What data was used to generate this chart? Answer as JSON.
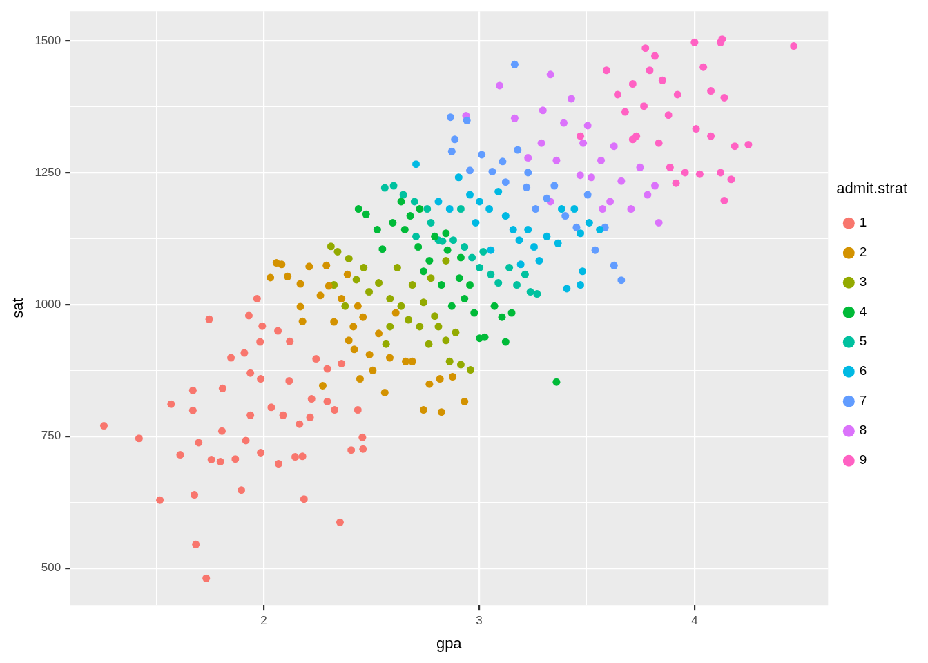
{
  "chart_data": {
    "type": "scatter",
    "xlabel": "gpa",
    "ylabel": "sat",
    "legend_title": "admit.strat",
    "legend": "right",
    "grid": true,
    "marker": "circle",
    "xlim": [
      1.1,
      4.62
    ],
    "ylim": [
      430,
      1556
    ],
    "xticks": [
      {
        "value": 1.5,
        "label": null
      },
      2,
      {
        "value": 2.5,
        "label": null
      },
      3,
      {
        "value": 3.5,
        "label": null
      },
      4,
      {
        "value": 4.5,
        "label": null
      }
    ],
    "yticks": [
      500,
      {
        "value": 625,
        "label": null
      },
      750,
      {
        "value": 875,
        "label": null
      },
      1000,
      {
        "value": 1125,
        "label": null
      },
      1250,
      {
        "value": 1375,
        "label": null
      },
      1500
    ],
    "series": [
      {
        "name": "1",
        "color": "#f8766d",
        "x": [
          1.258,
          1.421,
          1.518,
          1.57,
          1.612,
          1.671,
          1.671,
          1.678,
          1.685,
          1.698,
          1.733,
          1.747,
          1.757,
          1.799,
          1.806,
          1.809,
          1.848,
          1.868,
          1.896,
          1.91,
          1.917,
          1.931,
          1.938,
          1.938,
          1.969,
          1.983,
          1.986,
          1.993,
          1.986,
          2.035,
          2.066,
          2.069,
          2.09,
          2.118,
          2.121,
          2.146,
          2.166,
          2.18,
          2.187,
          2.222,
          2.215,
          2.243,
          2.295,
          2.329,
          2.354,
          2.361,
          2.406,
          2.437,
          2.458,
          2.461,
          2.295
        ],
        "values": [
          770,
          746,
          629,
          811,
          715,
          837,
          799,
          639,
          545,
          738,
          481,
          972,
          706,
          702,
          760,
          841,
          899,
          707,
          648,
          908,
          742,
          979,
          870,
          790,
          1011,
          929,
          859,
          959,
          719,
          805,
          950,
          698,
          790,
          855,
          930,
          711,
          773,
          712,
          631,
          821,
          786,
          897,
          878,
          800,
          587,
          888,
          724,
          800,
          748,
          726,
          816
        ]
      },
      {
        "name": "2",
        "color": "#d39200",
        "x": [
          2.031,
          2.059,
          2.083,
          2.111,
          2.17,
          2.211,
          2.17,
          2.18,
          2.263,
          2.291,
          2.302,
          2.326,
          2.361,
          2.389,
          2.395,
          2.416,
          2.437,
          2.461,
          2.491,
          2.506,
          2.534,
          2.562,
          2.585,
          2.613,
          2.659,
          2.69,
          2.742,
          2.769,
          2.818,
          2.825,
          2.877,
          2.932,
          2.42,
          2.274,
          2.447
        ],
        "values": [
          1051,
          1079,
          1076,
          1053,
          1039,
          1072,
          996,
          968,
          1017,
          1074,
          1035,
          967,
          1011,
          1057,
          932,
          958,
          997,
          976,
          905,
          875,
          945,
          833,
          899,
          984,
          892,
          892,
          800,
          849,
          859,
          796,
          863,
          816,
          915,
          846,
          859
        ]
      },
      {
        "name": "3",
        "color": "#93aa00",
        "x": [
          2.312,
          2.343,
          2.395,
          2.326,
          2.378,
          2.43,
          2.464,
          2.489,
          2.534,
          2.586,
          2.586,
          2.638,
          2.672,
          2.69,
          2.724,
          2.742,
          2.766,
          2.794,
          2.811,
          2.846,
          2.863,
          2.891,
          2.915,
          2.96,
          2.846,
          2.776,
          2.62,
          2.568
        ],
        "values": [
          1110,
          1100,
          1087,
          1037,
          997,
          1047,
          1070,
          1024,
          1041,
          1011,
          958,
          997,
          971,
          1037,
          958,
          1004,
          925,
          978,
          958,
          932,
          892,
          947,
          886,
          876,
          1083,
          1050,
          1070,
          925
        ]
      },
      {
        "name": "4",
        "color": "#00ba38",
        "x": [
          2.44,
          2.475,
          2.527,
          2.551,
          2.599,
          2.638,
          2.68,
          2.717,
          2.724,
          2.742,
          2.769,
          2.794,
          2.825,
          2.853,
          2.873,
          2.908,
          2.932,
          2.957,
          2.977,
          3.002,
          3.026,
          3.071,
          3.106,
          3.123,
          3.151,
          3.359,
          2.846,
          2.655,
          2.915
        ],
        "values": [
          1181,
          1171,
          1142,
          1105,
          1155,
          1195,
          1168,
          1109,
          1181,
          1063,
          1083,
          1129,
          1037,
          1103,
          997,
          1050,
          1011,
          1037,
          984,
          936,
          938,
          997,
          976,
          929,
          984,
          853,
          1135,
          1142,
          1089
        ]
      },
      {
        "name": "5",
        "color": "#00c19f",
        "x": [
          2.562,
          2.603,
          2.648,
          2.7,
          2.759,
          2.776,
          2.811,
          2.83,
          2.88,
          2.932,
          2.967,
          3.002,
          3.019,
          3.054,
          3.089,
          3.14,
          3.175,
          3.213,
          3.238,
          3.269,
          2.707,
          2.915
        ],
        "values": [
          1221,
          1225,
          1208,
          1195,
          1181,
          1155,
          1122,
          1120,
          1122,
          1109,
          1089,
          1070,
          1100,
          1057,
          1041,
          1070,
          1037,
          1057,
          1024,
          1020,
          1129,
          1181
        ]
      },
      {
        "name": "6",
        "color": "#00b9e3",
        "x": [
          2.707,
          2.811,
          2.863,
          2.905,
          2.957,
          3.002,
          3.047,
          3.089,
          3.123,
          3.158,
          3.186,
          3.227,
          3.255,
          3.279,
          3.314,
          3.366,
          3.383,
          3.407,
          3.442,
          3.47,
          3.48,
          3.511,
          3.47,
          3.56,
          3.054,
          3.193,
          2.984
        ],
        "values": [
          1266,
          1195,
          1181,
          1241,
          1208,
          1195,
          1181,
          1214,
          1168,
          1142,
          1122,
          1142,
          1109,
          1083,
          1129,
          1116,
          1181,
          1030,
          1181,
          1135,
          1063,
          1155,
          1037,
          1142,
          1103,
          1076,
          1155
        ]
      },
      {
        "name": "7",
        "color": "#619cff",
        "x": [
          2.867,
          2.887,
          2.873,
          2.943,
          2.957,
          3.012,
          3.061,
          3.109,
          3.165,
          3.123,
          3.179,
          3.22,
          3.262,
          3.314,
          3.349,
          3.4,
          3.452,
          3.504,
          3.539,
          3.584,
          3.626,
          3.66,
          3.227
        ],
        "values": [
          1355,
          1313,
          1290,
          1349,
          1254,
          1284,
          1252,
          1271,
          1455,
          1232,
          1293,
          1222,
          1181,
          1201,
          1225,
          1168,
          1146,
          1208,
          1103,
          1146,
          1074,
          1046,
          1250
        ]
      },
      {
        "name": "8",
        "color": "#db72fb",
        "x": [
          2.939,
          3.095,
          3.165,
          3.227,
          3.289,
          3.296,
          3.331,
          3.359,
          3.393,
          3.428,
          3.469,
          3.483,
          3.504,
          3.521,
          3.566,
          3.608,
          3.626,
          3.66,
          3.705,
          3.747,
          3.782,
          3.816,
          3.834,
          3.573,
          3.331
        ],
        "values": [
          1358,
          1415,
          1353,
          1278,
          1306,
          1368,
          1436,
          1273,
          1344,
          1390,
          1245,
          1306,
          1339,
          1241,
          1273,
          1195,
          1300,
          1234,
          1181,
          1260,
          1208,
          1225,
          1155,
          1181,
          1195
        ]
      },
      {
        "name": "9",
        "color": "#ff61c3",
        "x": [
          3.591,
          3.643,
          3.678,
          3.713,
          3.73,
          3.765,
          3.772,
          3.792,
          3.816,
          3.834,
          3.851,
          3.879,
          3.886,
          3.914,
          3.921,
          3.956,
          4.0,
          4.007,
          4.024,
          4.041,
          4.076,
          4.076,
          4.121,
          4.128,
          4.138,
          4.138,
          4.17,
          4.187,
          4.25,
          4.461,
          4.121,
          3.713,
          3.47
        ],
        "values": [
          1444,
          1398,
          1365,
          1418,
          1319,
          1376,
          1486,
          1444,
          1471,
          1306,
          1425,
          1359,
          1260,
          1230,
          1398,
          1250,
          1497,
          1333,
          1247,
          1450,
          1405,
          1319,
          1497,
          1503,
          1392,
          1197,
          1237,
          1300,
          1303,
          1490,
          1250,
          1313,
          1319
        ]
      }
    ]
  }
}
